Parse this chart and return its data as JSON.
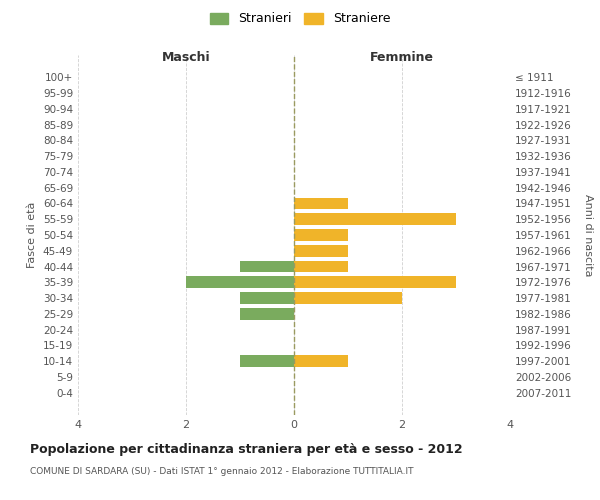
{
  "age_groups": [
    "100+",
    "95-99",
    "90-94",
    "85-89",
    "80-84",
    "75-79",
    "70-74",
    "65-69",
    "60-64",
    "55-59",
    "50-54",
    "45-49",
    "40-44",
    "35-39",
    "30-34",
    "25-29",
    "20-24",
    "15-19",
    "10-14",
    "5-9",
    "0-4"
  ],
  "birth_years": [
    "≤ 1911",
    "1912-1916",
    "1917-1921",
    "1922-1926",
    "1927-1931",
    "1932-1936",
    "1937-1941",
    "1942-1946",
    "1947-1951",
    "1952-1956",
    "1957-1961",
    "1962-1966",
    "1967-1971",
    "1972-1976",
    "1977-1981",
    "1982-1986",
    "1987-1991",
    "1992-1996",
    "1997-2001",
    "2002-2006",
    "2007-2011"
  ],
  "males": [
    0,
    0,
    0,
    0,
    0,
    0,
    0,
    0,
    0,
    0,
    0,
    0,
    1,
    2,
    1,
    1,
    0,
    0,
    1,
    0,
    0
  ],
  "females": [
    0,
    0,
    0,
    0,
    0,
    0,
    0,
    0,
    1,
    3,
    1,
    1,
    1,
    3,
    2,
    0,
    0,
    0,
    1,
    0,
    0
  ],
  "male_color": "#7aab5e",
  "female_color": "#f0b429",
  "title": "Popolazione per cittadinanza straniera per età e sesso - 2012",
  "subtitle": "COMUNE DI SARDARA (SU) - Dati ISTAT 1° gennaio 2012 - Elaborazione TUTTITALIA.IT",
  "xlabel_left": "Maschi",
  "xlabel_right": "Femmine",
  "ylabel_left": "Fasce di età",
  "ylabel_right": "Anni di nascita",
  "legend_males": "Stranieri",
  "legend_females": "Straniere",
  "xlim": 4,
  "background_color": "#ffffff",
  "grid_color": "#d0d0d0",
  "bar_height": 0.75
}
